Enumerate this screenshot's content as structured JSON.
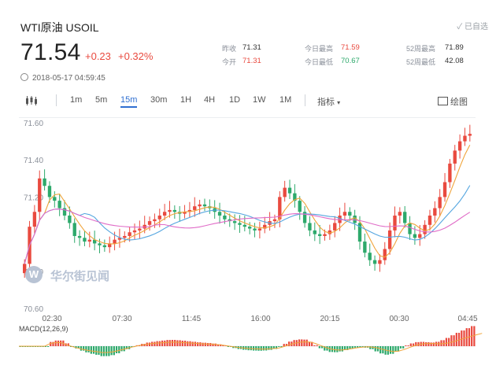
{
  "header": {
    "title": "WTI原油  USOIL",
    "self_pick": "✓ 已自选",
    "price": "71.54",
    "change": "+0.23",
    "change_pct": "+0.32%",
    "timestamp": "2018-05-17 04:59:45"
  },
  "stats": {
    "prev_close_label": "昨收",
    "prev_close": "71.31",
    "open_label": "今开",
    "open": "71.31",
    "high_label": "今日最高",
    "high": "71.59",
    "low_label": "今日最低",
    "low": "70.67",
    "wk52_high_label": "52周最高",
    "wk52_high": "71.89",
    "wk52_low_label": "52周最低",
    "wk52_low": "42.08"
  },
  "toolbar": {
    "intervals": [
      "1m",
      "5m",
      "15m",
      "30m",
      "1H",
      "4H",
      "1D",
      "1W",
      "1M"
    ],
    "active_interval": "15m",
    "indicator_label": "指标",
    "draw_label": "绘图"
  },
  "watermark": "华尔街见闻",
  "macd_label": "MACD(12,26,9)",
  "colors": {
    "up": "#e94a3f",
    "down": "#2da96b",
    "accent": "#2f6fd1",
    "ma_fast": "#f0a43a",
    "ma_mid": "#55a6e0",
    "ma_slow": "#e06bc7"
  },
  "chart_data": {
    "type": "candlestick",
    "y_ticks": [
      "71.60",
      "71.40",
      "71.20",
      "70.80",
      "70.60"
    ],
    "x_ticks": [
      "02:30",
      "07:30",
      "11:45",
      "16:00",
      "20:15",
      "00:30",
      "04:45"
    ],
    "ylim": [
      70.6,
      71.6
    ],
    "closes": [
      70.84,
      71.04,
      71.12,
      71.3,
      71.26,
      71.2,
      71.18,
      71.14,
      71.1,
      71.06,
      70.99,
      70.98,
      70.96,
      70.97,
      70.95,
      70.94,
      70.93,
      70.95,
      70.97,
      70.98,
      70.99,
      71.01,
      71.02,
      71.03,
      71.05,
      71.07,
      71.08,
      71.1,
      71.12,
      71.13,
      71.12,
      71.11,
      71.12,
      71.13,
      71.15,
      71.16,
      71.15,
      71.14,
      71.12,
      71.1,
      71.08,
      71.07,
      71.06,
      71.05,
      71.04,
      71.03,
      71.02,
      71.03,
      71.05,
      71.07,
      71.08,
      71.2,
      71.25,
      71.22,
      71.18,
      71.12,
      71.06,
      71.02,
      71.0,
      70.99,
      71.0,
      71.02,
      71.06,
      71.1,
      71.12,
      71.1,
      71.06,
      70.96,
      70.9,
      70.86,
      70.84,
      70.86,
      70.92,
      71.02,
      71.1,
      71.12,
      71.06,
      71.0,
      70.98,
      71.0,
      71.05,
      71.1,
      71.14,
      71.2,
      71.28,
      71.38,
      71.45,
      71.5,
      71.53,
      71.54
    ]
  }
}
